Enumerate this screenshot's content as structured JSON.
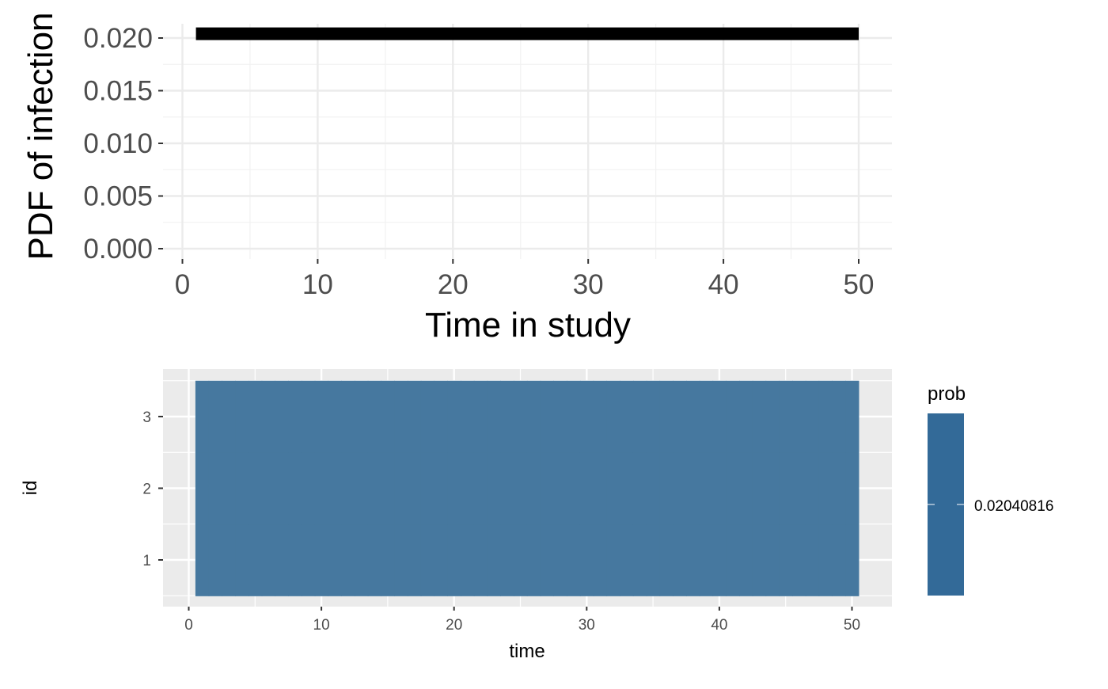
{
  "chart_data": [
    {
      "type": "line",
      "title": "",
      "xlabel": "Time in study",
      "ylabel": "PDF of infection",
      "xlim": [
        0,
        52
      ],
      "ylim": [
        0,
        0.0205
      ],
      "grid": true,
      "x_ticks": [
        "0",
        "10",
        "20",
        "30",
        "40",
        "50"
      ],
      "y_ticks": [
        "0.000",
        "0.005",
        "0.010",
        "0.015",
        "0.020"
      ],
      "series": [
        {
          "x": [
            1,
            50
          ],
          "y": [
            0.02040816,
            0.02040816
          ]
        }
      ],
      "colors": {
        "line": "#000000",
        "grid": "#ebebeb",
        "tick_text": "#4d4d4d"
      }
    },
    {
      "type": "heatmap",
      "title": "",
      "xlabel": "time",
      "ylabel": "id",
      "xlim": [
        -0.5,
        52.5
      ],
      "ylim": [
        0.4,
        3.6
      ],
      "grid": true,
      "x_ticks": [
        "0",
        "10",
        "20",
        "30",
        "40",
        "50"
      ],
      "y_ticks": [
        "1",
        "2",
        "3"
      ],
      "tiles": {
        "x_from": 1,
        "x_to": 50,
        "ids": [
          1,
          2,
          3
        ],
        "value": 0.02040816
      },
      "legend": {
        "title": "prob",
        "labels": [
          "0.02040816"
        ],
        "position": "right"
      },
      "colors": {
        "fill": "#46789f",
        "legend_fill": "#336a98",
        "panel": "#ebebeb",
        "grid": "#ffffff",
        "tick_text": "#4d4d4d"
      }
    }
  ]
}
